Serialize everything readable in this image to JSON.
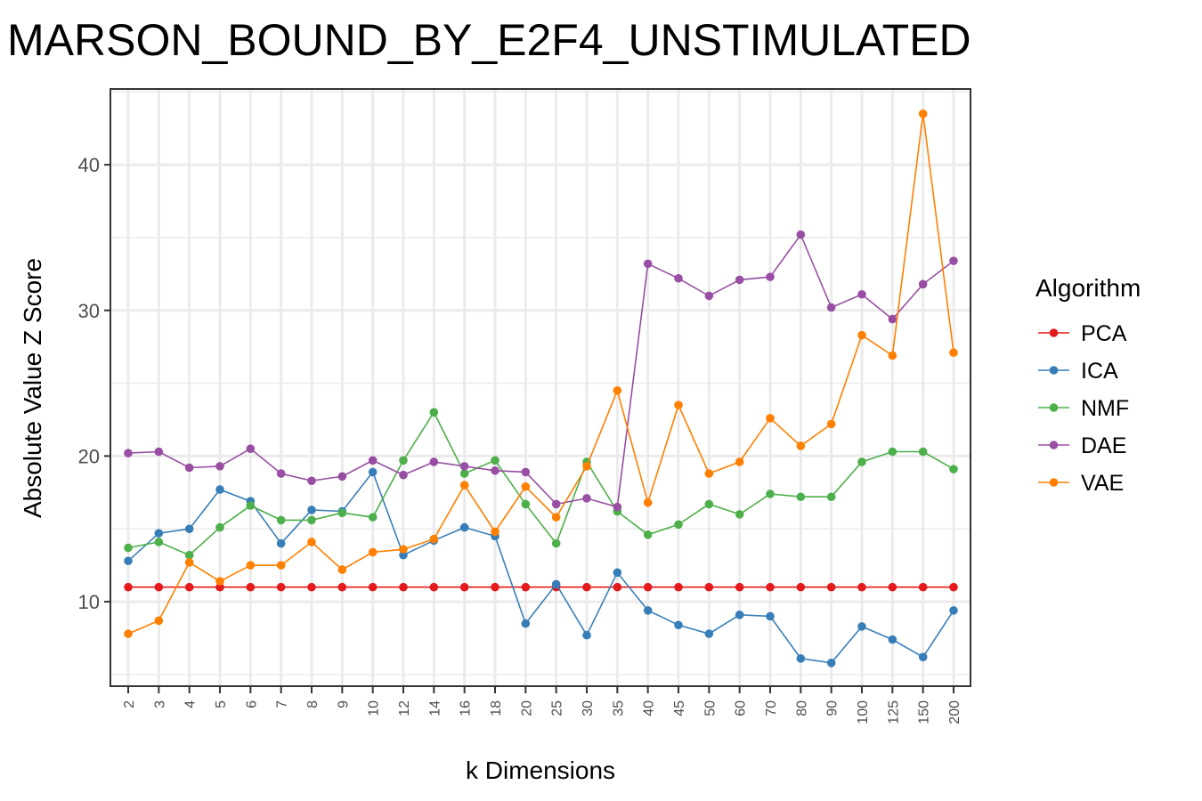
{
  "chart_data": {
    "type": "line",
    "title": "MARSON_BOUND_BY_E2F4_UNSTIMULATED",
    "xlabel": "k Dimensions",
    "ylabel": "Absolute Value Z Score",
    "categories": [
      "2",
      "3",
      "4",
      "5",
      "6",
      "7",
      "8",
      "9",
      "10",
      "12",
      "14",
      "16",
      "18",
      "20",
      "25",
      "30",
      "35",
      "40",
      "45",
      "50",
      "60",
      "70",
      "80",
      "90",
      "100",
      "125",
      "150",
      "200"
    ],
    "ylim": [
      4.2,
      45.2
    ],
    "yticks": [
      10,
      20,
      30,
      40
    ],
    "grid": true,
    "legend": {
      "title": "Algorithm",
      "placement": "right"
    },
    "series": [
      {
        "name": "PCA",
        "color": "#e41a1c",
        "values": [
          11,
          11,
          11,
          11,
          11,
          11,
          11,
          11,
          11,
          11,
          11,
          11,
          11,
          11,
          11,
          11,
          11,
          11,
          11,
          11,
          11,
          11,
          11,
          11,
          11,
          11,
          11,
          11
        ]
      },
      {
        "name": "ICA",
        "color": "#377eb8",
        "values": [
          12.8,
          14.7,
          15.0,
          17.7,
          16.9,
          14.0,
          16.3,
          16.2,
          18.9,
          13.2,
          14.2,
          15.1,
          14.5,
          8.5,
          11.2,
          7.7,
          12.0,
          9.4,
          8.4,
          7.8,
          9.1,
          9.0,
          6.1,
          5.8,
          8.3,
          7.4,
          6.2,
          9.4
        ]
      },
      {
        "name": "NMF",
        "color": "#4daf4a",
        "values": [
          13.7,
          14.1,
          13.2,
          15.1,
          16.6,
          15.6,
          15.6,
          16.1,
          15.8,
          19.7,
          23.0,
          18.8,
          19.7,
          16.7,
          14.0,
          19.6,
          16.2,
          14.6,
          15.3,
          16.7,
          16.0,
          17.4,
          17.2,
          17.2,
          19.6,
          20.3,
          20.3,
          19.1
        ]
      },
      {
        "name": "DAE",
        "color": "#984ea3",
        "values": [
          20.2,
          20.3,
          19.2,
          19.3,
          20.5,
          18.8,
          18.3,
          18.6,
          19.7,
          18.7,
          19.6,
          19.3,
          19.0,
          18.9,
          16.7,
          17.1,
          16.5,
          33.2,
          32.2,
          31.0,
          32.1,
          32.3,
          35.2,
          30.2,
          31.1,
          29.4,
          31.8,
          33.4
        ]
      },
      {
        "name": "VAE",
        "color": "#ff7f00",
        "values": [
          7.8,
          8.7,
          12.7,
          11.4,
          12.5,
          12.5,
          14.1,
          12.2,
          13.4,
          13.6,
          14.3,
          18.0,
          14.8,
          17.9,
          15.8,
          19.3,
          24.5,
          16.8,
          23.5,
          18.8,
          19.6,
          22.6,
          20.7,
          22.2,
          28.3,
          26.9,
          43.5,
          27.1
        ]
      }
    ]
  }
}
